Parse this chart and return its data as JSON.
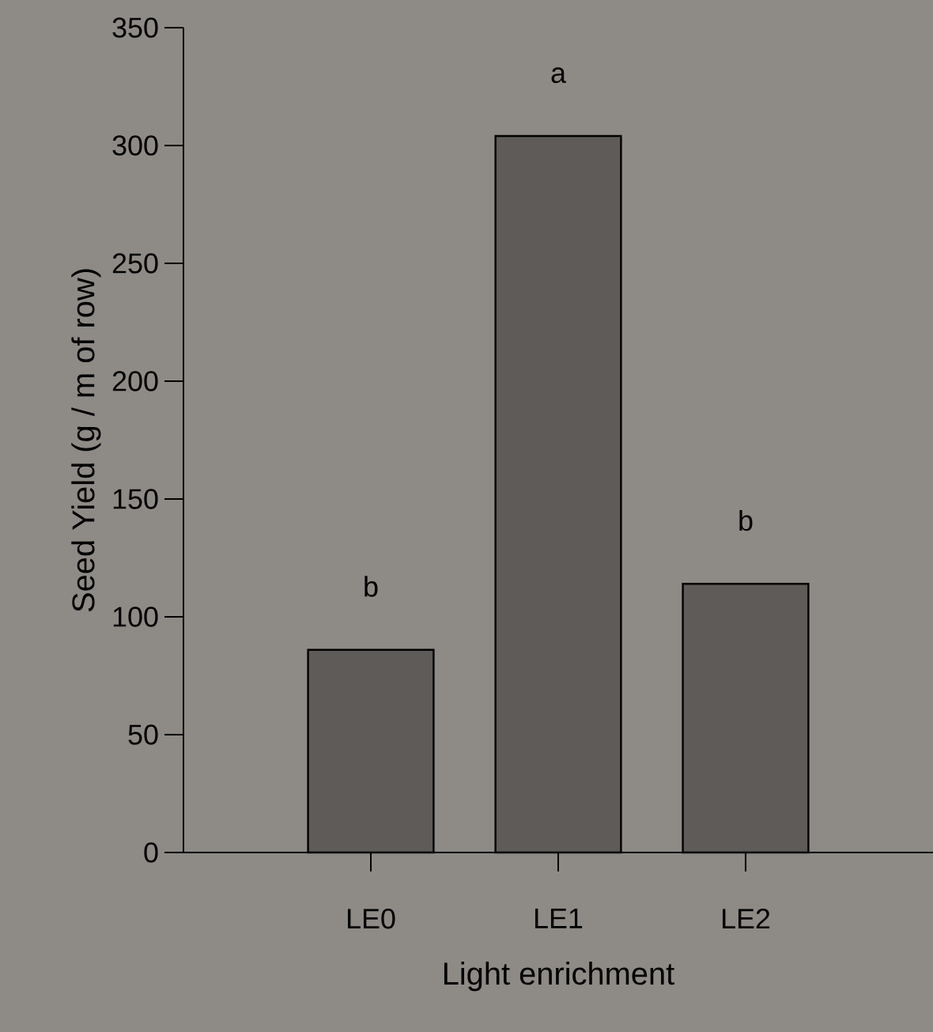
{
  "chart_data": {
    "type": "bar",
    "xlabel": "Light enrichment",
    "ylabel": "Seed Yield (g / m of row)",
    "categories": [
      "LE0",
      "LE1",
      "LE2"
    ],
    "values": [
      86,
      304,
      114
    ],
    "color": "#5e5b58",
    "ylim": [
      0,
      350
    ],
    "yticks": [
      0,
      50,
      100,
      150,
      200,
      250,
      300,
      350
    ],
    "annotations": [
      "b",
      "a",
      "b"
    ]
  }
}
